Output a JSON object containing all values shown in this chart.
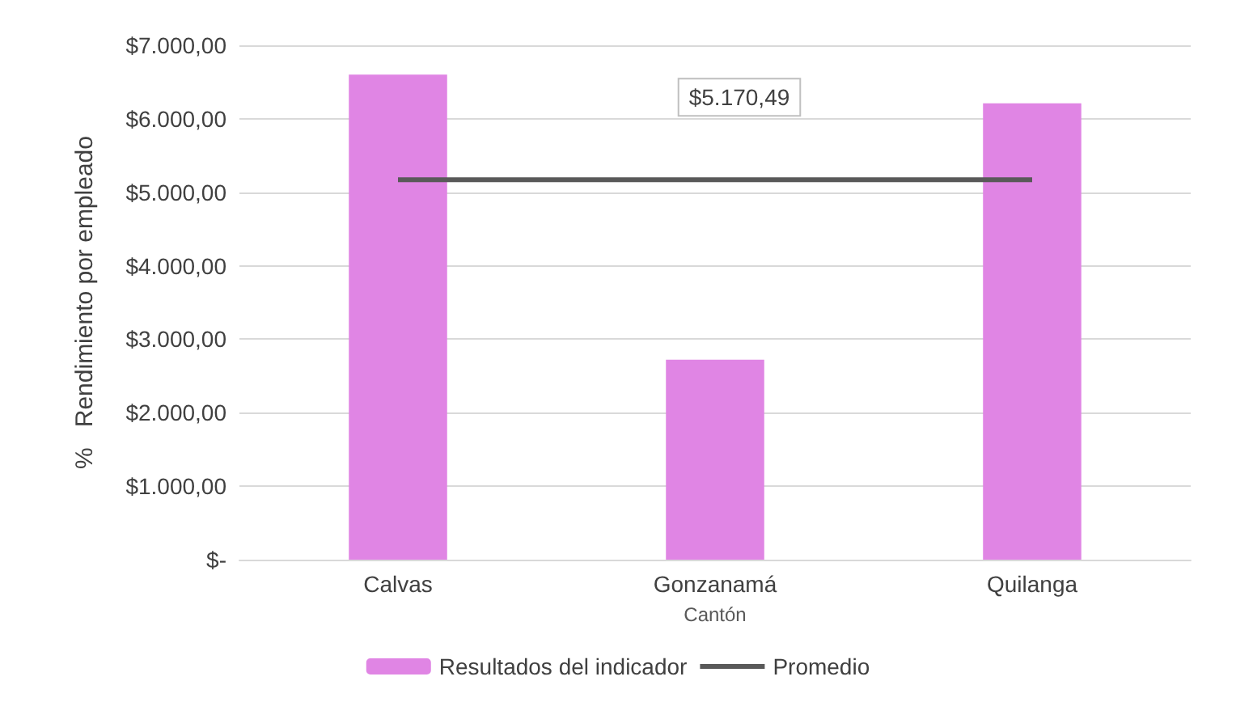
{
  "chart_data": {
    "type": "bar",
    "xlabel": "Cantón",
    "ylabel": "%   Rendimiento por empleado",
    "categories": [
      "Calvas",
      "Gonzanamá",
      "Quilanga"
    ],
    "series": [
      {
        "name": "Resultados del indicador",
        "color": "#e085e4",
        "values": [
          6600,
          2720,
          6210
        ]
      },
      {
        "name": "Promedio",
        "type": "line",
        "color": "#595959",
        "values": [
          5170.49,
          5170.49,
          5170.49
        ],
        "value_labels": [
          null,
          "$5.170,49",
          null
        ]
      }
    ],
    "ylim": [
      0,
      7000
    ],
    "yticks": [
      {
        "value": 0,
        "label": "$-"
      },
      {
        "value": 1000,
        "label": "$1.000,00"
      },
      {
        "value": 2000,
        "label": "$2.000,00"
      },
      {
        "value": 3000,
        "label": "$3.000,00"
      },
      {
        "value": 4000,
        "label": "$4.000,00"
      },
      {
        "value": 5000,
        "label": "$5.000,00"
      },
      {
        "value": 6000,
        "label": "$6.000,00"
      },
      {
        "value": 7000,
        "label": "$7.000,00"
      }
    ],
    "grid": "y",
    "legend": "bottom",
    "marker": "none",
    "line_style": "solid"
  }
}
